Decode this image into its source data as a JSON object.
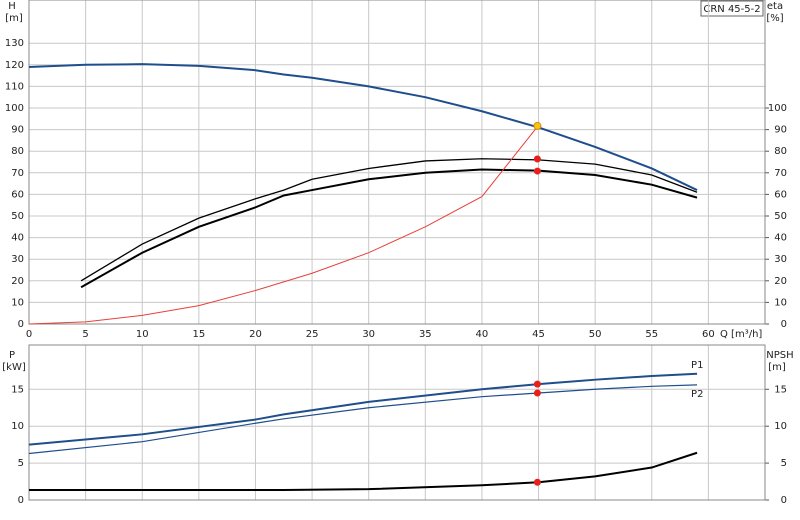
{
  "chart_data": [
    {
      "type": "line",
      "annotation": "CRN 45-5-2",
      "xlabel": "Q [m³/h]",
      "ylabel": "H",
      "yunit": "[m]",
      "y2label": "eta",
      "y2unit": "[%]",
      "xlim": [
        0,
        65
      ],
      "xticks": [
        0,
        5,
        10,
        15,
        20,
        25,
        30,
        35,
        40,
        45,
        50,
        55,
        60
      ],
      "ylim": [
        0,
        150
      ],
      "yticks": [
        0,
        10,
        20,
        30,
        40,
        50,
        60,
        70,
        80,
        90,
        100,
        110,
        120,
        130
      ],
      "y2lim": [
        0,
        150
      ],
      "y2ticks": [
        0,
        10,
        20,
        30,
        40,
        50,
        60,
        70,
        80,
        90,
        100
      ],
      "grid": true,
      "series": [
        {
          "color": "#1f4e8c",
          "width": 2,
          "x": [
            0,
            5,
            10,
            15,
            20,
            22.5,
            25,
            30,
            35,
            40,
            45,
            50,
            55,
            59
          ],
          "values": [
            119,
            120,
            120.3,
            119.5,
            117.5,
            115.5,
            114,
            110,
            105,
            98.5,
            91,
            82,
            72,
            62
          ]
        },
        {
          "color": "#000000",
          "width": 1.3,
          "axis": "y2",
          "x": [
            4.6,
            10,
            15,
            20,
            22.5,
            25,
            30,
            35,
            40,
            45,
            50,
            55,
            59
          ],
          "values": [
            20,
            37,
            49,
            58,
            62,
            67,
            72,
            75.5,
            76.5,
            76,
            74,
            69,
            61
          ]
        },
        {
          "color": "#000000",
          "width": 2,
          "axis": "y2",
          "x": [
            4.6,
            10,
            15,
            20,
            22.5,
            25,
            30,
            35,
            40,
            45,
            50,
            55,
            59
          ],
          "values": [
            17,
            33,
            45,
            54,
            59.5,
            62,
            67,
            70,
            71.5,
            71,
            69,
            64.5,
            58.5
          ]
        },
        {
          "color": "#e8403a",
          "width": 1,
          "x": [
            0,
            5,
            10,
            15,
            20,
            25,
            30,
            35,
            40,
            45
          ],
          "values": [
            0,
            1,
            4,
            8.5,
            15.5,
            23.5,
            33,
            45,
            59,
            92
          ]
        },
        {
          "color": "#e8201a",
          "marker": true,
          "axis": "y2",
          "x": [
            44.9,
            44.9
          ],
          "values": [
            76.4,
            70.8
          ]
        },
        {
          "color": "#f5c518",
          "marker": true,
          "x": [
            44.9
          ],
          "values": [
            91.7
          ]
        }
      ]
    },
    {
      "type": "line",
      "ylabel": "P",
      "yunit": "[kW]",
      "y2label": "NPSH",
      "y2unit": "[m]",
      "ylim": [
        0,
        21
      ],
      "yticks": [
        0,
        5,
        10,
        15
      ],
      "y2lim": [
        0,
        21
      ],
      "y2ticks": [
        0,
        5,
        10,
        15
      ],
      "grid": true,
      "series": [
        {
          "name": "P1",
          "color": "#1f4e8c",
          "width": 2,
          "x": [
            0,
            10,
            20,
            22.5,
            30,
            40,
            45,
            50,
            55,
            59
          ],
          "values": [
            7.5,
            8.9,
            10.9,
            11.6,
            13.3,
            15,
            15.7,
            16.3,
            16.8,
            17.1
          ]
        },
        {
          "name": "P2",
          "color": "#1f4e8c",
          "width": 1.2,
          "x": [
            0,
            10,
            20,
            22.5,
            30,
            40,
            45,
            50,
            55,
            59
          ],
          "values": [
            6.3,
            7.9,
            10.4,
            11,
            12.5,
            14,
            14.5,
            15,
            15.4,
            15.6
          ]
        },
        {
          "color": "#000000",
          "width": 2,
          "axis": "y2",
          "x": [
            0,
            22.5,
            30,
            40,
            45,
            50,
            55,
            59
          ],
          "values": [
            1.35,
            1.35,
            1.47,
            2,
            2.4,
            3.2,
            4.4,
            6.4
          ]
        },
        {
          "color": "#e8201a",
          "marker": true,
          "x": [
            44.9,
            44.9
          ],
          "values": [
            15.7,
            14.5
          ]
        },
        {
          "color": "#e8201a",
          "marker": true,
          "axis": "y2",
          "x": [
            44.9
          ],
          "values": [
            2.4
          ]
        }
      ]
    }
  ]
}
